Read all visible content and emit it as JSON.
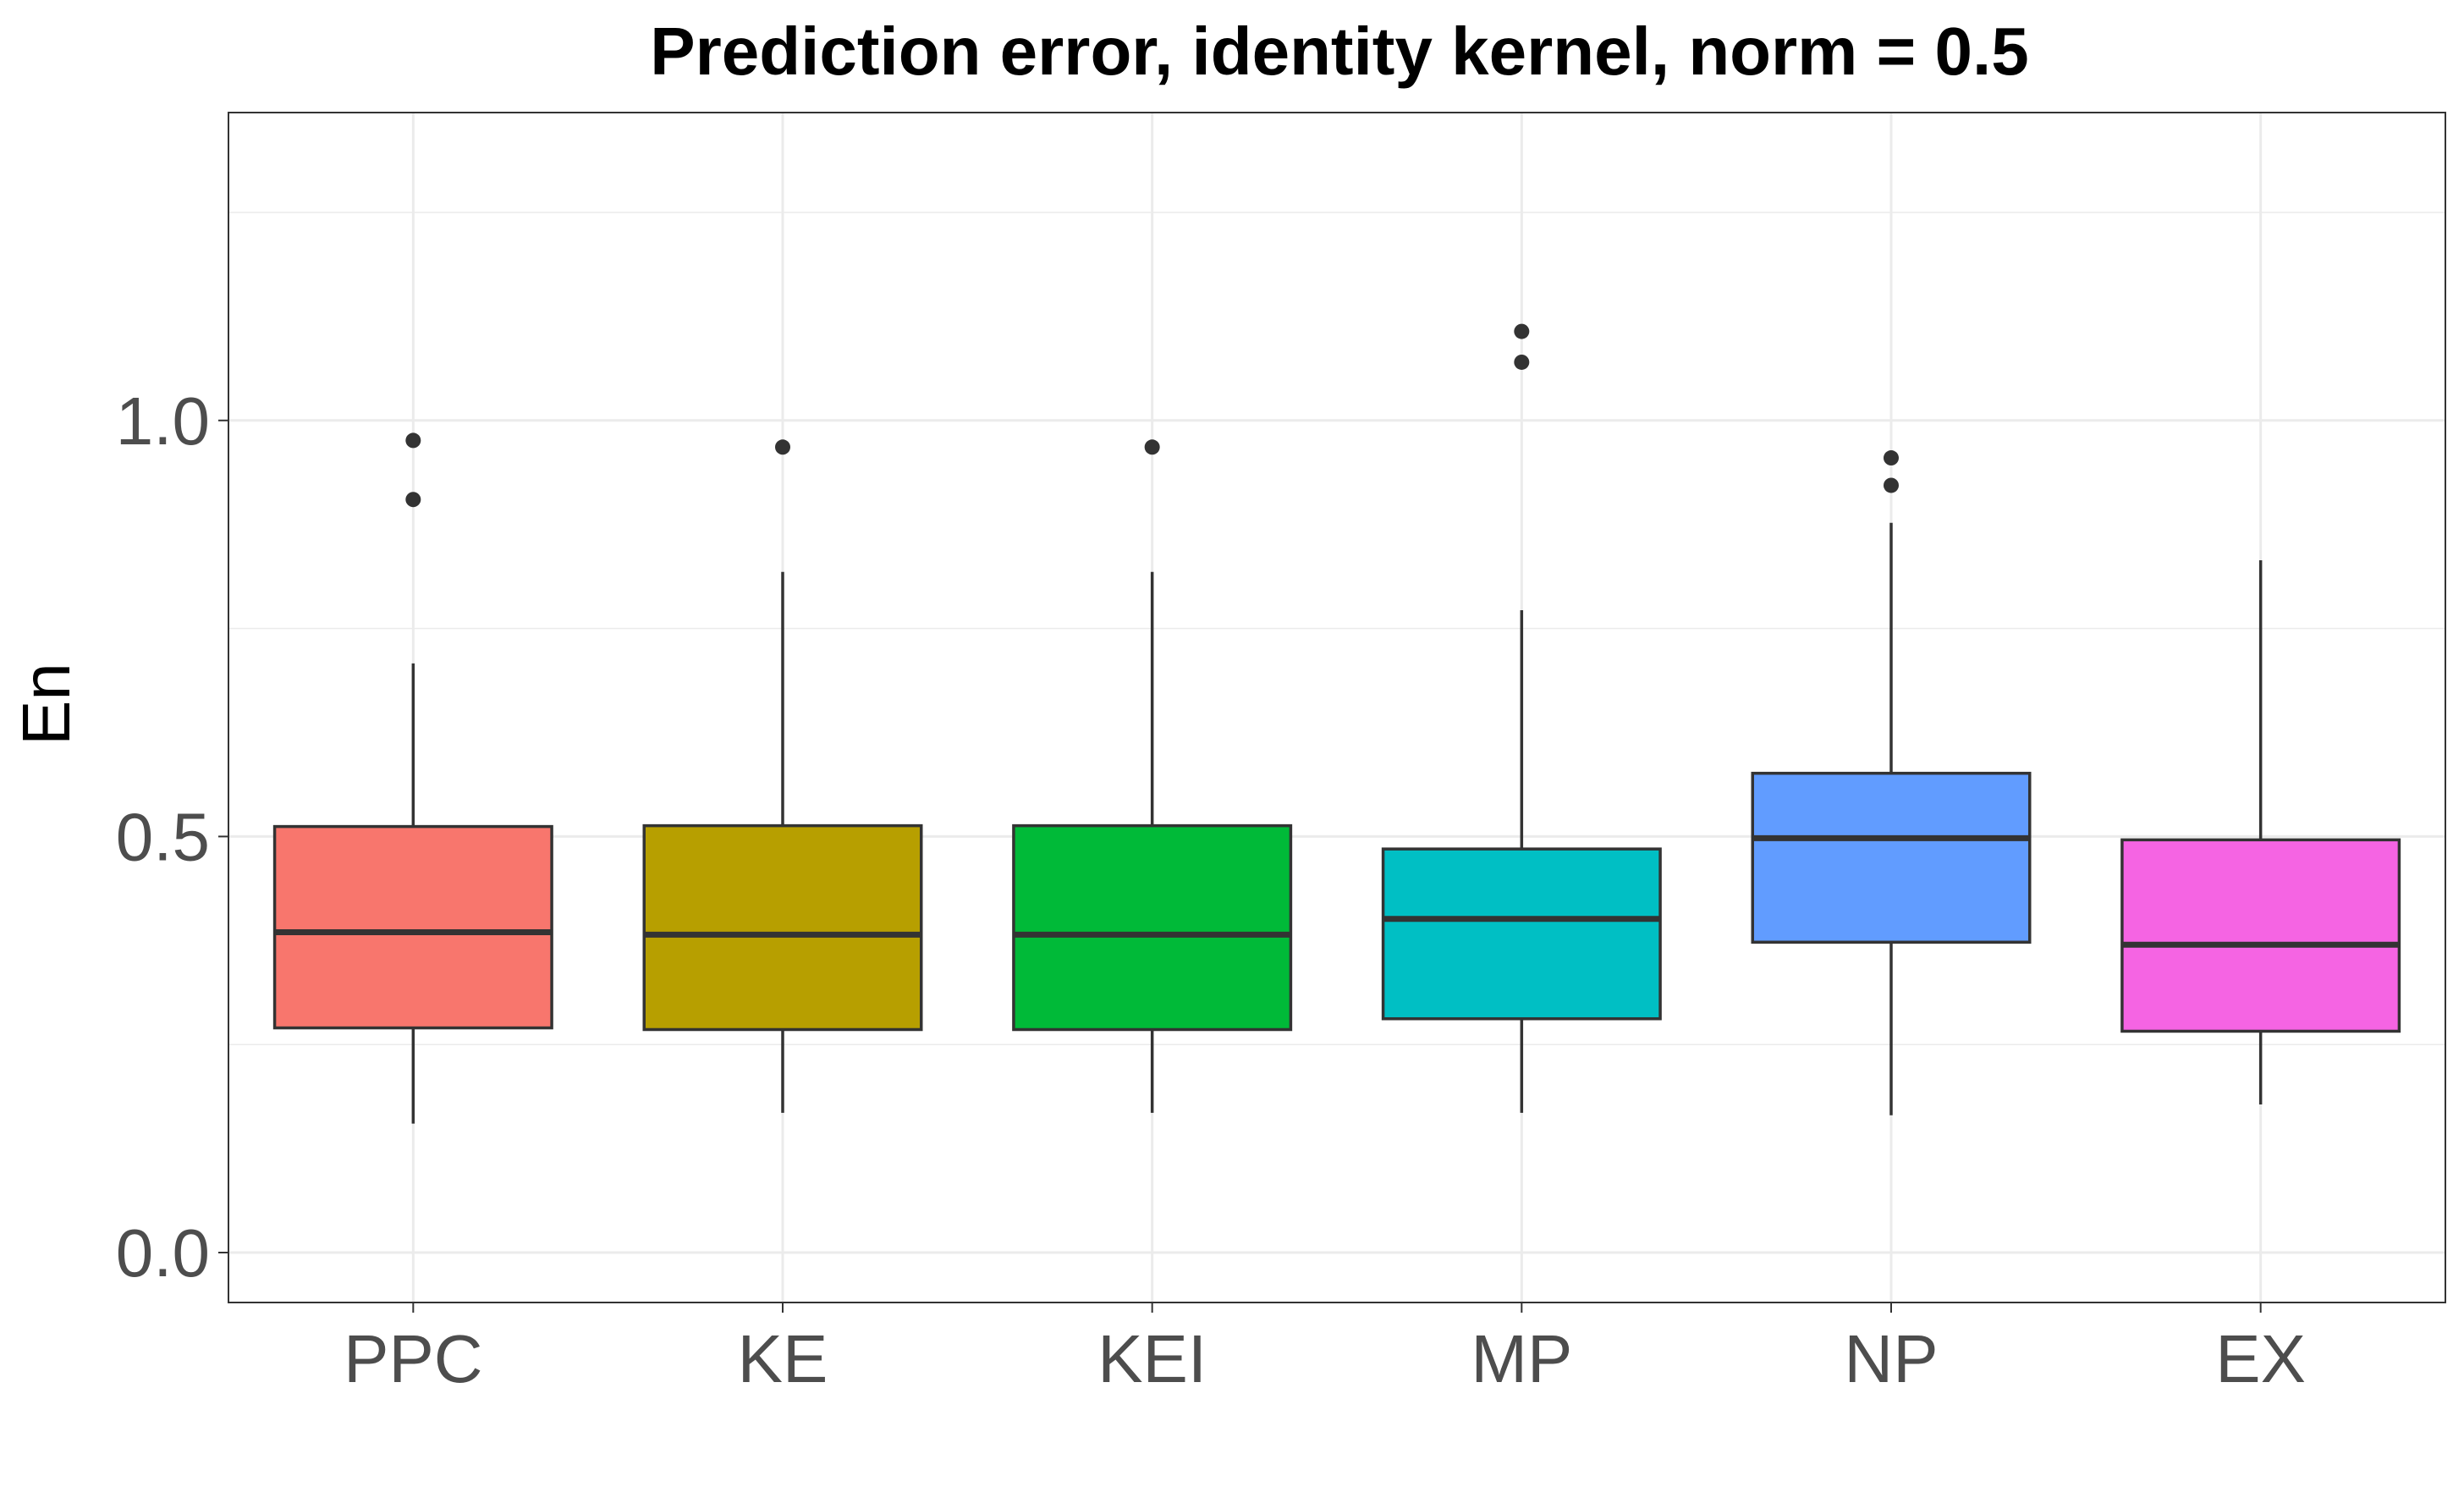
{
  "chart_data": {
    "type": "boxplot",
    "title": "Prediction error, identity kernel, norm = 0.5",
    "xlabel": "",
    "ylabel": "En",
    "ylim": [
      -0.06,
      1.37
    ],
    "yticks": [
      0.0,
      0.5,
      1.0
    ],
    "ytick_labels": [
      "0.0",
      "0.5",
      "1.0"
    ],
    "grid": true,
    "legend": "none",
    "categories": [
      "PPC",
      "KE",
      "KEI",
      "MP",
      "NP",
      "EX"
    ],
    "colors": [
      "#F8766D",
      "#B79F00",
      "#00BA38",
      "#00BFC4",
      "#619CFF",
      "#F564E3"
    ],
    "boxes": [
      {
        "category": "PPC",
        "whisker_low": 0.155,
        "q1": 0.27,
        "median": 0.385,
        "q3": 0.512,
        "whisker_high": 0.708,
        "outliers": [
          0.976,
          0.905
        ]
      },
      {
        "category": "KE",
        "whisker_low": 0.168,
        "q1": 0.268,
        "median": 0.382,
        "q3": 0.513,
        "whisker_high": 0.818,
        "outliers": [
          0.968
        ]
      },
      {
        "category": "KEI",
        "whisker_low": 0.168,
        "q1": 0.268,
        "median": 0.382,
        "q3": 0.513,
        "whisker_high": 0.818,
        "outliers": [
          0.968
        ]
      },
      {
        "category": "MP",
        "whisker_low": 0.168,
        "q1": 0.281,
        "median": 0.401,
        "q3": 0.485,
        "whisker_high": 0.772,
        "outliers": [
          1.107,
          1.07
        ]
      },
      {
        "category": "NP",
        "whisker_low": 0.165,
        "q1": 0.373,
        "median": 0.498,
        "q3": 0.576,
        "whisker_high": 0.877,
        "outliers": [
          0.955,
          0.922
        ]
      },
      {
        "category": "EX",
        "whisker_low": 0.178,
        "q1": 0.266,
        "median": 0.37,
        "q3": 0.496,
        "whisker_high": 0.832,
        "outliers": []
      }
    ]
  }
}
